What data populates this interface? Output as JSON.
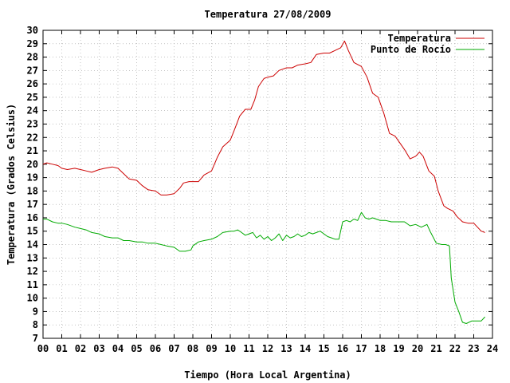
{
  "chart_data": {
    "type": "line",
    "title": "Temperatura 27/08/2009",
    "xlabel": "Tiempo (Hora Local Argentina)",
    "ylabel": "Temperatura (Grados Celsius)",
    "xlim": [
      0,
      24
    ],
    "ylim": [
      7,
      30
    ],
    "x_ticks": [
      "00",
      "01",
      "02",
      "03",
      "04",
      "05",
      "06",
      "07",
      "08",
      "09",
      "10",
      "11",
      "12",
      "13",
      "14",
      "15",
      "16",
      "17",
      "18",
      "19",
      "20",
      "21",
      "22",
      "23",
      "24"
    ],
    "y_ticks": [
      7,
      8,
      9,
      10,
      11,
      12,
      13,
      14,
      15,
      16,
      17,
      18,
      19,
      20,
      21,
      22,
      23,
      24,
      25,
      26,
      27,
      28,
      29,
      30
    ],
    "grid": true,
    "legend_position": "top-right",
    "series": [
      {
        "name": "Temperatura",
        "color": "#cc0000",
        "x": [
          0.0,
          0.2,
          0.5,
          0.8,
          1.0,
          1.3,
          1.7,
          2.0,
          2.3,
          2.6,
          3.0,
          3.3,
          3.7,
          4.0,
          4.3,
          4.6,
          5.0,
          5.3,
          5.6,
          6.0,
          6.3,
          6.6,
          7.0,
          7.3,
          7.5,
          7.8,
          8.0,
          8.3,
          8.6,
          9.0,
          9.3,
          9.6,
          10.0,
          10.2,
          10.5,
          10.8,
          11.1,
          11.3,
          11.5,
          11.8,
          12.0,
          12.3,
          12.6,
          13.0,
          13.3,
          13.6,
          14.0,
          14.3,
          14.6,
          15.0,
          15.3,
          15.6,
          15.9,
          16.1,
          16.3,
          16.6,
          17.0,
          17.3,
          17.6,
          17.9,
          18.2,
          18.5,
          18.8,
          19.0,
          19.3,
          19.6,
          19.9,
          20.1,
          20.3,
          20.6,
          20.9,
          21.1,
          21.4,
          21.6,
          21.9,
          22.1,
          22.4,
          22.7,
          23.0,
          23.2,
          23.4,
          23.6
        ],
        "values": [
          20.0,
          20.1,
          20.0,
          19.9,
          19.7,
          19.6,
          19.7,
          19.6,
          19.5,
          19.4,
          19.6,
          19.7,
          19.8,
          19.7,
          19.3,
          18.9,
          18.8,
          18.4,
          18.1,
          18.0,
          17.7,
          17.7,
          17.8,
          18.2,
          18.6,
          18.7,
          18.7,
          18.7,
          19.2,
          19.5,
          20.5,
          21.3,
          21.8,
          22.5,
          23.6,
          24.1,
          24.1,
          24.8,
          25.8,
          26.4,
          26.5,
          26.6,
          27.0,
          27.2,
          27.2,
          27.4,
          27.5,
          27.6,
          28.2,
          28.3,
          28.3,
          28.5,
          28.7,
          29.2,
          28.5,
          27.6,
          27.3,
          26.5,
          25.3,
          25.0,
          23.8,
          22.3,
          22.1,
          21.7,
          21.1,
          20.4,
          20.6,
          20.9,
          20.6,
          19.5,
          19.1,
          18.0,
          16.9,
          16.7,
          16.5,
          16.1,
          15.7,
          15.6,
          15.6,
          15.3,
          15.0,
          14.9
        ]
      },
      {
        "name": "Punto de Rocío",
        "color": "#00aa00",
        "x": [
          0.0,
          0.2,
          0.5,
          0.8,
          1.0,
          1.3,
          1.7,
          2.0,
          2.3,
          2.6,
          3.0,
          3.3,
          3.7,
          4.0,
          4.3,
          4.6,
          5.0,
          5.3,
          5.6,
          6.0,
          6.3,
          6.6,
          7.0,
          7.3,
          7.6,
          7.9,
          8.0,
          8.3,
          8.6,
          9.0,
          9.3,
          9.6,
          10.0,
          10.2,
          10.4,
          10.6,
          10.8,
          11.0,
          11.2,
          11.4,
          11.6,
          11.8,
          12.0,
          12.2,
          12.4,
          12.6,
          12.8,
          13.0,
          13.2,
          13.4,
          13.6,
          13.8,
          14.0,
          14.2,
          14.4,
          14.6,
          14.8,
          15.0,
          15.2,
          15.4,
          15.6,
          15.8,
          16.0,
          16.2,
          16.4,
          16.6,
          16.8,
          17.0,
          17.2,
          17.4,
          17.6,
          17.8,
          18.0,
          18.3,
          18.6,
          19.0,
          19.3,
          19.6,
          19.9,
          20.2,
          20.5,
          20.7,
          21.0,
          21.3,
          21.5,
          21.7,
          21.8,
          22.0,
          22.2,
          22.4,
          22.6,
          22.9,
          23.2,
          23.4,
          23.6
        ],
        "values": [
          15.9,
          15.9,
          15.7,
          15.6,
          15.6,
          15.5,
          15.3,
          15.2,
          15.1,
          14.9,
          14.8,
          14.6,
          14.5,
          14.5,
          14.3,
          14.3,
          14.2,
          14.2,
          14.1,
          14.1,
          14.0,
          13.9,
          13.8,
          13.5,
          13.5,
          13.6,
          13.9,
          14.2,
          14.3,
          14.4,
          14.6,
          14.9,
          15.0,
          15.0,
          15.1,
          14.9,
          14.7,
          14.8,
          14.9,
          14.5,
          14.7,
          14.4,
          14.6,
          14.3,
          14.5,
          14.8,
          14.3,
          14.7,
          14.5,
          14.6,
          14.8,
          14.6,
          14.7,
          14.9,
          14.8,
          14.9,
          15.0,
          14.8,
          14.6,
          14.5,
          14.4,
          14.4,
          15.7,
          15.8,
          15.7,
          15.9,
          15.8,
          16.4,
          16.0,
          15.9,
          16.0,
          15.9,
          15.8,
          15.8,
          15.7,
          15.7,
          15.7,
          15.4,
          15.5,
          15.3,
          15.5,
          14.9,
          14.1,
          14.0,
          14.0,
          13.9,
          11.5,
          9.7,
          9.0,
          8.2,
          8.1,
          8.3,
          8.3,
          8.3,
          8.6
        ]
      }
    ]
  }
}
